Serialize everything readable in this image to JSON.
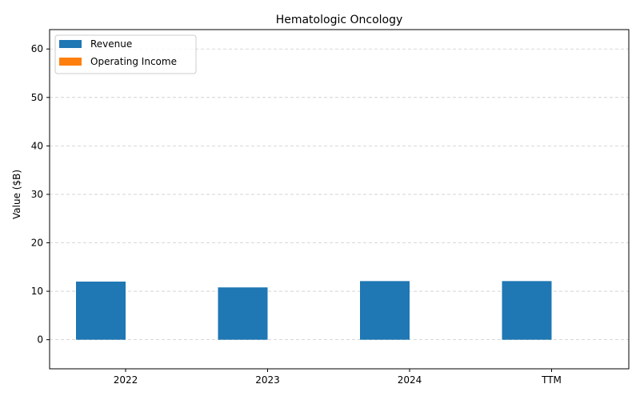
{
  "chart_data": {
    "type": "bar",
    "title": "Hematologic Oncology",
    "xlabel": "",
    "ylabel": "Value ($B)",
    "categories": [
      "2022",
      "2023",
      "2024",
      "TTM"
    ],
    "series": [
      {
        "name": "Revenue",
        "values": [
          12.0,
          10.8,
          12.1,
          12.1
        ],
        "color": "#1f77b4"
      },
      {
        "name": "Operating Income",
        "values": [
          0,
          0,
          0,
          0
        ],
        "color": "#ff7f0e"
      }
    ],
    "ylim": [
      -6,
      64
    ],
    "yticks": [
      0,
      10,
      20,
      30,
      40,
      50,
      60
    ],
    "grid": "y-dashed",
    "legend_position": "top-left"
  }
}
